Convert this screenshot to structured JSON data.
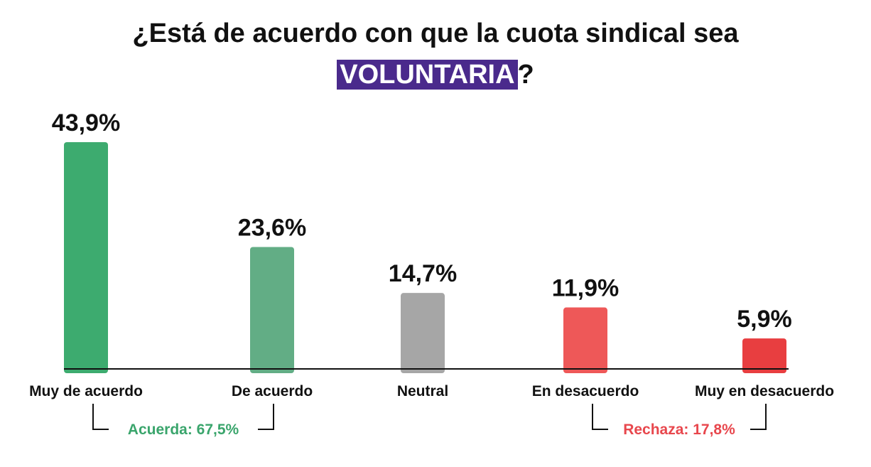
{
  "title": {
    "line1": "¿Está de acuerdo con que la cuota sindical sea",
    "highlight": "VOLUNTARIA",
    "suffix": "?"
  },
  "colors": {
    "title_highlight": "#4a2a8c",
    "agree_group": "#3aa56c",
    "reject_group": "#e8474d"
  },
  "chart_data": {
    "type": "bar",
    "categories": [
      "Muy de acuerdo",
      "De acuerdo",
      "Neutral",
      "En desacuerdo",
      "Muy en desacuerdo"
    ],
    "values": [
      43.9,
      23.6,
      14.7,
      11.9,
      5.9
    ],
    "value_labels": [
      "43,9%",
      "23,6%",
      "14,7%",
      "11,9%",
      "5,9%"
    ],
    "bar_colors": [
      "#3dab6f",
      "#62ad85",
      "#a6a6a6",
      "#ee5858",
      "#e83e40"
    ],
    "ylim": [
      0,
      45
    ],
    "groups": [
      {
        "label": "Acuerda: 67,5%",
        "from": 0,
        "to": 1,
        "color": "#3aa56c"
      },
      {
        "label": "Rechaza: 17,8%",
        "from": 3,
        "to": 4,
        "color": "#e8474d"
      }
    ]
  }
}
